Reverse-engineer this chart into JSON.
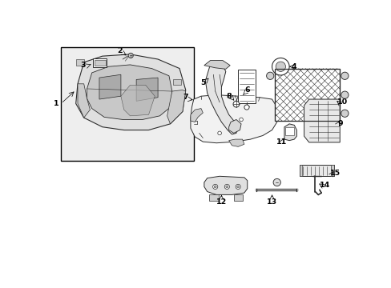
{
  "background_color": "#ffffff",
  "fig_width": 4.89,
  "fig_height": 3.6,
  "dpi": 100,
  "line_color": "#2c2c2c",
  "lw": 0.65,
  "gray_fill": "#d8d8d8",
  "light_gray": "#eeeeee"
}
